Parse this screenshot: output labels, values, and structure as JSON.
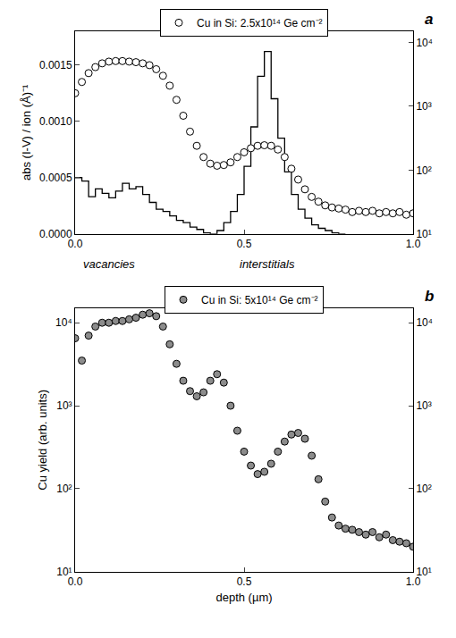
{
  "chart_data": [
    {
      "type": "scatter",
      "panel": "a",
      "legend": "top",
      "log": "y2",
      "xlim": [
        0,
        1.0
      ],
      "xticks": [
        {
          "value": 0,
          "label": "0.0"
        },
        {
          "value": 0.5,
          "label": "0.5"
        },
        {
          "value": 1.0,
          "label": "1.0"
        }
      ],
      "ylabel": "abs (I-V) / ion (Å)⁻¹",
      "ylim": [
        0,
        0.0018
      ],
      "yticks": [
        {
          "value": 0,
          "label": "0.0000"
        },
        {
          "value": 0.0005,
          "label": "0.0005"
        },
        {
          "value": 0.001,
          "label": "0.0010"
        },
        {
          "value": 0.0015,
          "label": "0.0015"
        }
      ],
      "y2lim": [
        10,
        15000
      ],
      "y2ticks": [
        {
          "value": 10,
          "label": "10¹"
        },
        {
          "value": 100,
          "label": "10²"
        },
        {
          "value": 1000,
          "label": "10³"
        },
        {
          "value": 10000,
          "label": "10⁴"
        }
      ],
      "annotations": [
        {
          "text": "vacancies",
          "x": 0.1
        },
        {
          "text": "interstitials",
          "x": 0.57
        }
      ],
      "series": [
        {
          "name": "Cu in Si: 2.5x10¹⁴ Ge cm⁻²",
          "type": "scatter",
          "marker": "circle-open",
          "color": "#000000",
          "axis": "y2",
          "x": [
            0,
            0.02,
            0.04,
            0.06,
            0.08,
            0.1,
            0.12,
            0.14,
            0.16,
            0.18,
            0.2,
            0.22,
            0.24,
            0.26,
            0.28,
            0.3,
            0.32,
            0.34,
            0.36,
            0.38,
            0.4,
            0.42,
            0.44,
            0.46,
            0.48,
            0.5,
            0.52,
            0.54,
            0.56,
            0.58,
            0.6,
            0.62,
            0.64,
            0.66,
            0.68,
            0.7,
            0.72,
            0.74,
            0.76,
            0.78,
            0.8,
            0.82,
            0.84,
            0.86,
            0.88,
            0.9,
            0.92,
            0.94,
            0.96,
            0.98,
            1.0
          ],
          "values": [
            1600,
            2400,
            3300,
            4100,
            4700,
            5000,
            5100,
            5100,
            5000,
            4900,
            4700,
            4400,
            3800,
            3000,
            2100,
            1260,
            710,
            400,
            240,
            160,
            126,
            117,
            120,
            132,
            160,
            190,
            220,
            240,
            245,
            240,
            210,
            160,
            105,
            71,
            50,
            38,
            32,
            28,
            26,
            25,
            24,
            22,
            23,
            22,
            23,
            21,
            22,
            21,
            22,
            20,
            21
          ]
        },
        {
          "type": "line",
          "line_style": "step",
          "color": "#000000",
          "axis": "y",
          "x": [
            0,
            0.02,
            0.04,
            0.06,
            0.08,
            0.1,
            0.12,
            0.14,
            0.16,
            0.18,
            0.2,
            0.22,
            0.24,
            0.26,
            0.28,
            0.3,
            0.32,
            0.34,
            0.36,
            0.38,
            0.4,
            0.42,
            0.44,
            0.46,
            0.48,
            0.5,
            0.52,
            0.54,
            0.56,
            0.58,
            0.6,
            0.62,
            0.64,
            0.66,
            0.68,
            0.7,
            0.72,
            0.74,
            0.76,
            0.78,
            0.8
          ],
          "values": [
            0.0005,
            0.00047,
            0.00033,
            0.0004,
            0.00036,
            0.00032,
            0.00038,
            0.00045,
            0.0004,
            0.00042,
            0.00035,
            0.00028,
            0.00022,
            0.0002,
            0.00016,
            0.00012,
            0.0001,
            6e-05,
            4e-05,
            1e-05,
            0,
            3e-05,
            0.0001,
            0.0002,
            0.00035,
            0.0006,
            0.00095,
            0.0014,
            0.00162,
            0.0012,
            0.00085,
            0.00055,
            0.00035,
            0.00022,
            0.00014,
            8e-05,
            5e-05,
            3e-05,
            1e-05,
            0,
            0
          ]
        }
      ]
    },
    {
      "type": "scatter",
      "panel": "b",
      "legend": "top",
      "log": "y",
      "xlabel": "depth (µm)",
      "xlim": [
        0,
        1.0
      ],
      "xticks": [
        {
          "value": 0,
          "label": "0.0"
        },
        {
          "value": 0.5,
          "label": "0.5"
        },
        {
          "value": 1.0,
          "label": "1.0"
        }
      ],
      "ylabel": "Cu yield (arb. units)",
      "ylim": [
        10,
        15000
      ],
      "yticks": [
        {
          "value": 10,
          "label": "10¹"
        },
        {
          "value": 100,
          "label": "10²"
        },
        {
          "value": 1000,
          "label": "10³"
        },
        {
          "value": 10000,
          "label": "10⁴"
        }
      ],
      "y2lim": [
        10,
        15000
      ],
      "y2ticks": [
        {
          "value": 10,
          "label": "10¹"
        },
        {
          "value": 100,
          "label": "10²"
        },
        {
          "value": 1000,
          "label": "10³"
        },
        {
          "value": 10000,
          "label": "10⁴"
        }
      ],
      "series": [
        {
          "name": "Cu in Si: 5x10¹⁴ Ge cm⁻²",
          "type": "scatter",
          "marker": "circle-half",
          "color": "#000000",
          "axis": "y",
          "x": [
            0,
            0.02,
            0.04,
            0.06,
            0.08,
            0.1,
            0.12,
            0.14,
            0.16,
            0.18,
            0.2,
            0.22,
            0.24,
            0.26,
            0.28,
            0.3,
            0.32,
            0.34,
            0.36,
            0.38,
            0.4,
            0.42,
            0.44,
            0.46,
            0.48,
            0.5,
            0.52,
            0.54,
            0.56,
            0.58,
            0.6,
            0.62,
            0.64,
            0.66,
            0.68,
            0.7,
            0.72,
            0.74,
            0.76,
            0.78,
            0.8,
            0.82,
            0.84,
            0.86,
            0.88,
            0.9,
            0.92,
            0.94,
            0.96,
            0.98,
            1.0
          ],
          "values": [
            6500,
            3500,
            7000,
            9000,
            10000,
            10000,
            10500,
            10500,
            11000,
            11500,
            12500,
            13000,
            12000,
            9000,
            5500,
            3200,
            2000,
            1500,
            1300,
            1450,
            2000,
            2400,
            1900,
            1000,
            500,
            280,
            190,
            150,
            160,
            200,
            280,
            370,
            450,
            470,
            400,
            250,
            130,
            70,
            45,
            36,
            33,
            32,
            30,
            28,
            30,
            26,
            28,
            24,
            23,
            22,
            20
          ]
        }
      ]
    }
  ]
}
